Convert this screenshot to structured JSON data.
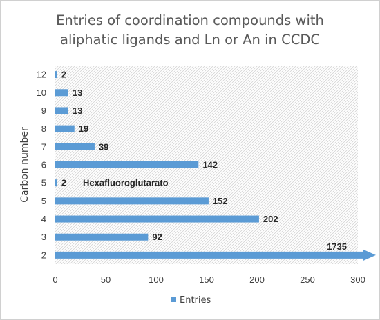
{
  "chart_data": {
    "type": "bar",
    "orientation": "horizontal",
    "title_lines": [
      "Entries of coordination compounds with",
      "aliphatic ligands and Ln or An in CCDC"
    ],
    "ylabel": "Carbon number",
    "xlabel": "",
    "xlim": [
      0,
      300
    ],
    "xticks": [
      0,
      50,
      100,
      150,
      200,
      250,
      300
    ],
    "categories": [
      "2",
      "3",
      "4",
      "5",
      "5",
      "6",
      "7",
      "8",
      "9",
      "10",
      "12"
    ],
    "values": [
      1735,
      92,
      202,
      152,
      2,
      142,
      39,
      19,
      13,
      13,
      2
    ],
    "data_labels": [
      "1735",
      "92",
      "202",
      "152",
      "2",
      "142",
      "39",
      "19",
      "13",
      "13",
      "2"
    ],
    "annotation": "Hexafluoroglutarato",
    "annotation_category_index": 4,
    "clipped_bar_index": 0,
    "grid": "hatched plot background",
    "legend": "bottom",
    "series": [
      {
        "name": "Entries",
        "color": "#5b9bd5"
      }
    ]
  }
}
